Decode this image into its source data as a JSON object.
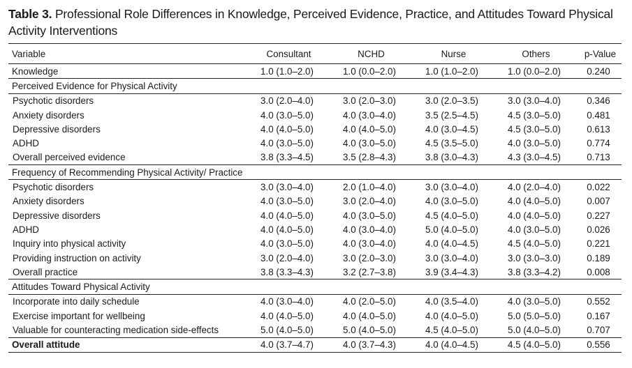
{
  "caption": {
    "label": "Table 3.",
    "text": "Professional Role Differences in Knowledge, Perceived Evidence, Practice, and Attitudes Toward Physical Activity Interventions"
  },
  "columns": [
    "Variable",
    "Consultant",
    "NCHD",
    "Nurse",
    "Others",
    "p-Value"
  ],
  "rows": [
    {
      "kind": "top",
      "cells": [
        "Knowledge",
        "1.0 (1.0–2.0)",
        "1.0 (0.0–2.0)",
        "1.0 (1.0–2.0)",
        "1.0 (0.0–2.0)",
        "0.240"
      ]
    },
    {
      "kind": "section",
      "cells": [
        "Perceived Evidence for Physical Activity"
      ]
    },
    {
      "kind": "sub",
      "cells": [
        "Psychotic disorders",
        "3.0 (2.0–4.0)",
        "3.0 (2.0–3.0)",
        "3.0 (2.0–3.5)",
        "3.0 (3.0–4.0)",
        "0.346"
      ]
    },
    {
      "kind": "sub",
      "cells": [
        "Anxiety disorders",
        "4.0 (3.0–5.0)",
        "4.0 (3.0–4.0)",
        "3.5 (2.5–4.5)",
        "4.5 (3.0–5.0)",
        "0.481"
      ]
    },
    {
      "kind": "sub",
      "cells": [
        "Depressive disorders",
        "4.0 (4.0–5.0)",
        "4.0 (4.0–5.0)",
        "4.0 (3.0–4.5)",
        "4.5 (3.0–5.0)",
        "0.613"
      ]
    },
    {
      "kind": "sub",
      "cells": [
        "ADHD",
        "4.0 (3.0–5.0)",
        "4.0 (3.0–5.0)",
        "4.5 (3.5–5.0)",
        "4.0 (3.0–5.0)",
        "0.774"
      ]
    },
    {
      "kind": "sub",
      "cells": [
        "Overall perceived evidence",
        "3.8 (3.3–4.5)",
        "3.5 (2.8–4.3)",
        "3.8 (3.0–4.3)",
        "4.3 (3.0–4.5)",
        "0.713"
      ]
    },
    {
      "kind": "section",
      "cells": [
        "Frequency of Recommending Physical Activity/ Practice"
      ]
    },
    {
      "kind": "sub",
      "cells": [
        "Psychotic disorders",
        "3.0 (3.0–4.0)",
        "2.0 (1.0–4.0)",
        "3.0 (3.0–4.0)",
        "4.0 (2.0–4.0)",
        "0.022"
      ]
    },
    {
      "kind": "sub",
      "cells": [
        "Anxiety disorders",
        "4.0 (3.0–5.0)",
        "3.0 (2.0–4.0)",
        "4.0 (3.0–5.0)",
        "4.0 (4.0–5.0)",
        "0.007"
      ]
    },
    {
      "kind": "sub",
      "cells": [
        "Depressive disorders",
        "4.0 (4.0–5.0)",
        "4.0 (3.0–5.0)",
        "4.5 (4.0–5.0)",
        "4.0 (4.0–5.0)",
        "0.227"
      ]
    },
    {
      "kind": "sub",
      "cells": [
        "ADHD",
        "4.0 (4.0–5.0)",
        "4.0 (3.0–4.0)",
        "5.0 (4.0–5.0)",
        "4.0 (3.0–5.0)",
        "0.026"
      ]
    },
    {
      "kind": "sub",
      "cells": [
        "Inquiry into physical activity",
        "4.0 (3.0–5.0)",
        "4.0 (3.0–4.0)",
        "4.0 (4.0–4.5)",
        "4.5 (4.0–5.0)",
        "0.221"
      ]
    },
    {
      "kind": "sub",
      "cells": [
        "Providing instruction on activity",
        "3.0 (2.0–4.0)",
        "3.0 (2.0–3.0)",
        "3.0 (3.0–4.0)",
        "3.0 (3.0–3.0)",
        "0.189"
      ]
    },
    {
      "kind": "sub",
      "cells": [
        "Overall practice",
        "3.8 (3.3–4.3)",
        "3.2 (2.7–3.8)",
        "3.9 (3.4–4.3)",
        "3.8 (3.3–4.2)",
        "0.008"
      ]
    },
    {
      "kind": "section",
      "cells": [
        "Attitudes Toward Physical Activity"
      ]
    },
    {
      "kind": "sub",
      "cells": [
        "Incorporate into daily schedule",
        "4.0 (3.0–4.0)",
        "4.0 (2.0–5.0)",
        "4.0 (3.5–4.0)",
        "4.0 (3.0–5.0)",
        "0.552"
      ]
    },
    {
      "kind": "sub",
      "cells": [
        "Exercise important for wellbeing",
        "4.0 (4.0–5.0)",
        "4.0 (4.0–5.0)",
        "4.0 (4.0–5.0)",
        "5.0 (5.0–5.0)",
        "0.167"
      ]
    },
    {
      "kind": "sub",
      "cells": [
        "Valuable for counteracting medication side-effects",
        "5.0 (4.0–5.0)",
        "5.0 (4.0–5.0)",
        "4.5 (4.0–5.0)",
        "5.0 (4.0–5.0)",
        "0.707"
      ]
    },
    {
      "kind": "last",
      "cells": [
        "Overall attitude",
        "4.0 (3.7–4.7)",
        "4.0 (3.7–4.3)",
        "4.0 (4.0–4.5)",
        "4.5 (4.0–5.0)",
        "0.556"
      ]
    }
  ]
}
